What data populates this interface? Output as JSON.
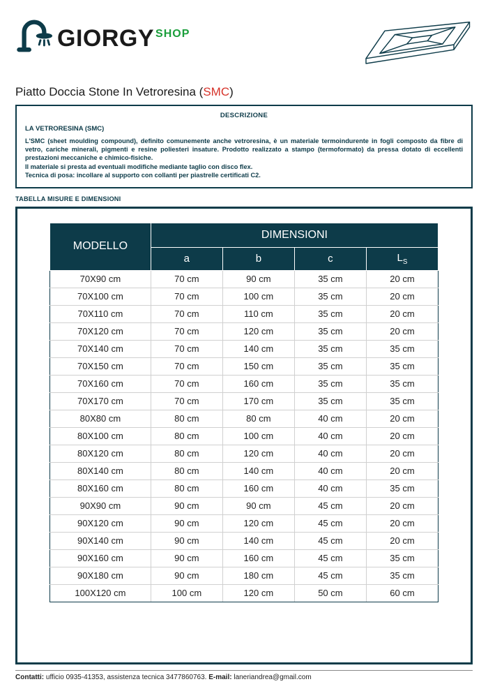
{
  "brand": {
    "name_main": "GIORGY",
    "name_sub": "SHOP"
  },
  "product_title": {
    "prefix": "Piatto Doccia Stone In Vetroresina (",
    "smc": "SMC",
    "suffix": ")"
  },
  "description": {
    "heading": "DESCRIZIONE",
    "subheading": "LA VETRORESINA (SMC)",
    "body": "L'SMC (sheet moulding compound), definito comunemente anche vetroresina, è un materiale termoindurente in fogli composto da fibre di vetro, cariche minerali, pigmenti e resine poliesteri insature. Prodotto realizzato a stampo (termoformato) da pressa dotato di eccellenti prestazioni meccaniche e chimico-fisiche.\nIl materiale si presta ad eventuali modifiche mediante taglio con disco flex.\nTecnica di posa: incollare al supporto con collanti per piastrelle certificati C2."
  },
  "table_section_label": "TABELLA MISURE E DIMENSIONI",
  "table": {
    "type": "table",
    "header_bg": "#0d3b49",
    "header_text_color": "#ffffff",
    "h_modello": "MODELLO",
    "h_dimensioni": "DIMENSIONI",
    "h_a": "a",
    "h_b": "b",
    "h_c": "c",
    "h_ls": "L",
    "rows": [
      {
        "m": "70X90 cm",
        "a": "70 cm",
        "b": "90 cm",
        "c": "35 cm",
        "ls": "20 cm"
      },
      {
        "m": "70X100 cm",
        "a": "70 cm",
        "b": "100 cm",
        "c": "35 cm",
        "ls": "20 cm"
      },
      {
        "m": "70X110 cm",
        "a": "70 cm",
        "b": "110 cm",
        "c": "35 cm",
        "ls": "20 cm"
      },
      {
        "m": "70X120 cm",
        "a": "70 cm",
        "b": "120 cm",
        "c": "35 cm",
        "ls": "20 cm"
      },
      {
        "m": "70X140 cm",
        "a": "70 cm",
        "b": "140 cm",
        "c": "35 cm",
        "ls": "35 cm"
      },
      {
        "m": "70X150 cm",
        "a": "70 cm",
        "b": "150 cm",
        "c": "35 cm",
        "ls": "35 cm"
      },
      {
        "m": "70X160 cm",
        "a": "70 cm",
        "b": "160 cm",
        "c": "35 cm",
        "ls": "35 cm"
      },
      {
        "m": "70X170 cm",
        "a": "70 cm",
        "b": "170 cm",
        "c": "35 cm",
        "ls": "35 cm"
      },
      {
        "m": "80X80 cm",
        "a": "80 cm",
        "b": "80 cm",
        "c": "40 cm",
        "ls": "20 cm"
      },
      {
        "m": "80X100 cm",
        "a": "80 cm",
        "b": "100 cm",
        "c": "40 cm",
        "ls": "20 cm"
      },
      {
        "m": "80X120 cm",
        "a": "80 cm",
        "b": "120 cm",
        "c": "40 cm",
        "ls": "20 cm"
      },
      {
        "m": "80X140 cm",
        "a": "80 cm",
        "b": "140 cm",
        "c": "40 cm",
        "ls": "20 cm"
      },
      {
        "m": "80X160 cm",
        "a": "80 cm",
        "b": "160 cm",
        "c": "40 cm",
        "ls": "35 cm"
      },
      {
        "m": "90X90 cm",
        "a": "90 cm",
        "b": "90 cm",
        "c": "45 cm",
        "ls": "20 cm"
      },
      {
        "m": "90X120 cm",
        "a": "90 cm",
        "b": "120 cm",
        "c": "45 cm",
        "ls": "20 cm"
      },
      {
        "m": "90X140 cm",
        "a": "90 cm",
        "b": "140 cm",
        "c": "45 cm",
        "ls": "20 cm"
      },
      {
        "m": "90X160 cm",
        "a": "90 cm",
        "b": "160 cm",
        "c": "45 cm",
        "ls": "35 cm"
      },
      {
        "m": "90X180 cm",
        "a": "90 cm",
        "b": "180 cm",
        "c": "45 cm",
        "ls": "35 cm"
      },
      {
        "m": "100X120 cm",
        "a": "100 cm",
        "b": "120 cm",
        "c": "50 cm",
        "ls": "60 cm"
      }
    ]
  },
  "footer": {
    "contacts_label": "Contatti:",
    "contacts_text": " ufficio 0935-41353, assistenza tecnica 3477860763. ",
    "email_label": " E-mail:",
    "email_text": " laneriandrea@gmail.com"
  },
  "colors": {
    "dark_teal": "#0d3b49",
    "green": "#1a9e3b",
    "red": "#d6332a",
    "border_gray": "#d0d0d0",
    "bg": "#ffffff"
  }
}
